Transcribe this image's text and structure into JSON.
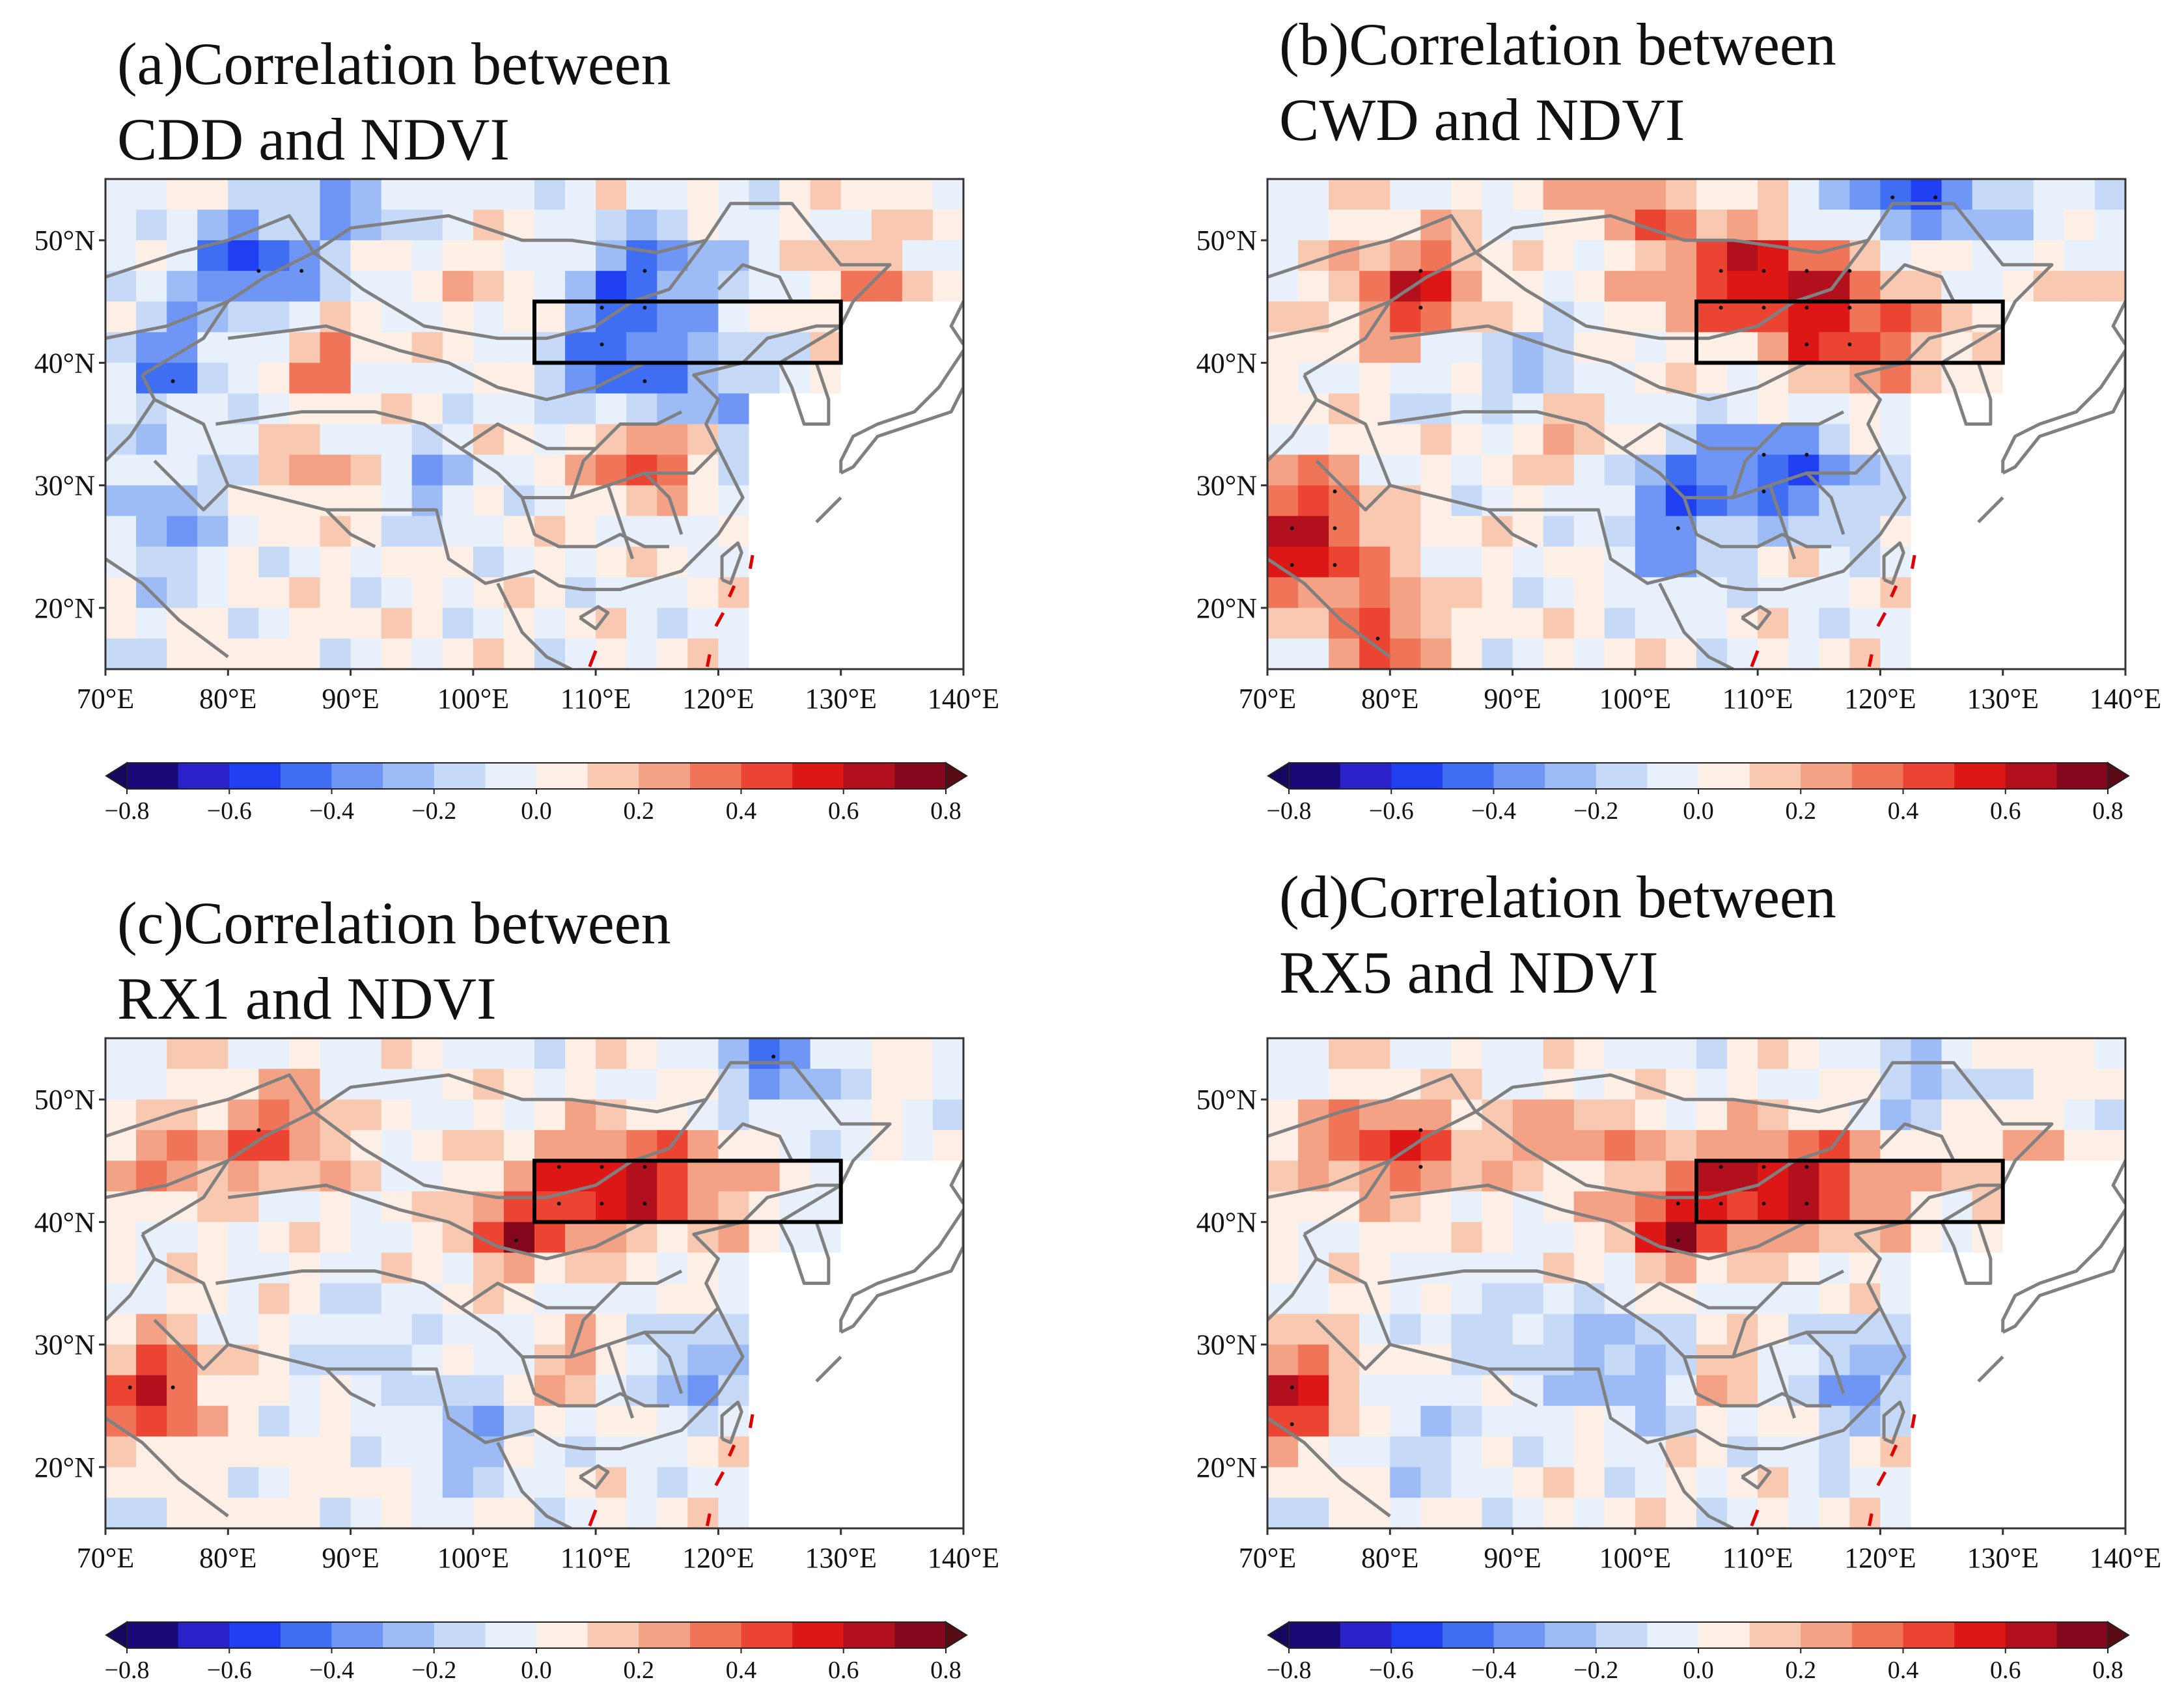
{
  "figure": {
    "panels": [
      {
        "id": "a",
        "title_line1": "(a)Correlation between",
        "title_line2": "CDD and NDVI",
        "pattern": "cdd"
      },
      {
        "id": "b",
        "title_line1": "(b)Correlation between",
        "title_line2": "CWD and NDVI",
        "pattern": "cwd"
      },
      {
        "id": "c",
        "title_line1": "(c)Correlation between",
        "title_line2": "RX1 and NDVI",
        "pattern": "rx1"
      },
      {
        "id": "d",
        "title_line1": "(d)Correlation between",
        "title_line2": "RX5 and NDVI",
        "pattern": "rx5"
      }
    ]
  },
  "map_extent": {
    "lon": [
      70,
      140
    ],
    "lat": [
      15,
      55
    ]
  },
  "lon_ticks": [
    70,
    80,
    90,
    100,
    110,
    120,
    130,
    140
  ],
  "lon_tick_labels": [
    "70°E",
    "80°E",
    "90°E",
    "100°E",
    "110°E",
    "120°E",
    "130°E",
    "140°E"
  ],
  "lat_ticks": [
    50,
    40,
    30,
    20
  ],
  "lat_tick_labels": [
    "50°N",
    "40°N",
    "30°N",
    "20°N"
  ],
  "study_region": {
    "lon": [
      105,
      130
    ],
    "lat": [
      40,
      45
    ]
  },
  "colorbar": {
    "levels": [
      -0.8,
      -0.7,
      -0.6,
      -0.5,
      -0.4,
      -0.3,
      -0.2,
      -0.1,
      0.0,
      0.1,
      0.2,
      0.3,
      0.4,
      0.5,
      0.6,
      0.7,
      0.8
    ],
    "tick_values": [
      -0.8,
      -0.6,
      -0.4,
      -0.2,
      0.0,
      0.2,
      0.4,
      0.6,
      0.8
    ],
    "tick_labels": [
      "−0.8",
      "−0.6",
      "−0.4",
      "−0.2",
      "0.0",
      "0.2",
      "0.4",
      "0.6",
      "0.8"
    ],
    "colors": [
      "#1a0a78",
      "#2a22c8",
      "#1f3ff0",
      "#3f6ef2",
      "#6f96f4",
      "#9dbcf6",
      "#c6daf8",
      "#e8f1fb",
      "#fdefe6",
      "#f8c9b0",
      "#f4a285",
      "#f07458",
      "#eb4433",
      "#dd1616",
      "#b2101c",
      "#84071d"
    ],
    "under_color": "#150760",
    "over_color": "#5a0a14"
  },
  "colors": {
    "border": "#808080",
    "box": "#000000",
    "dots": "#111111",
    "dashes": "#e00000"
  }
}
